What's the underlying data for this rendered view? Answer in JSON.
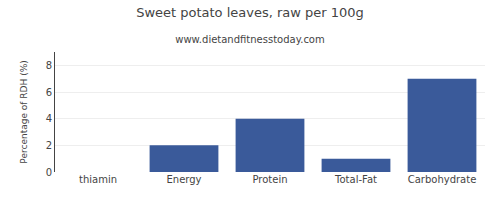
{
  "chart_data": {
    "type": "bar",
    "title": "Sweet potato leaves, raw per 100g",
    "subtitle": "www.dietandfitnesstoday.com",
    "categories": [
      "thiamin",
      "Energy",
      "Protein",
      "Total-Fat",
      "Carbohydrate"
    ],
    "values": [
      0,
      2,
      4,
      1,
      7
    ],
    "color": "#3a5a9a",
    "ylabel": "Percentage of RDH (%)",
    "ylim": [
      0,
      9
    ],
    "yticks": [
      0,
      2,
      4,
      6,
      8
    ],
    "grid": true
  }
}
